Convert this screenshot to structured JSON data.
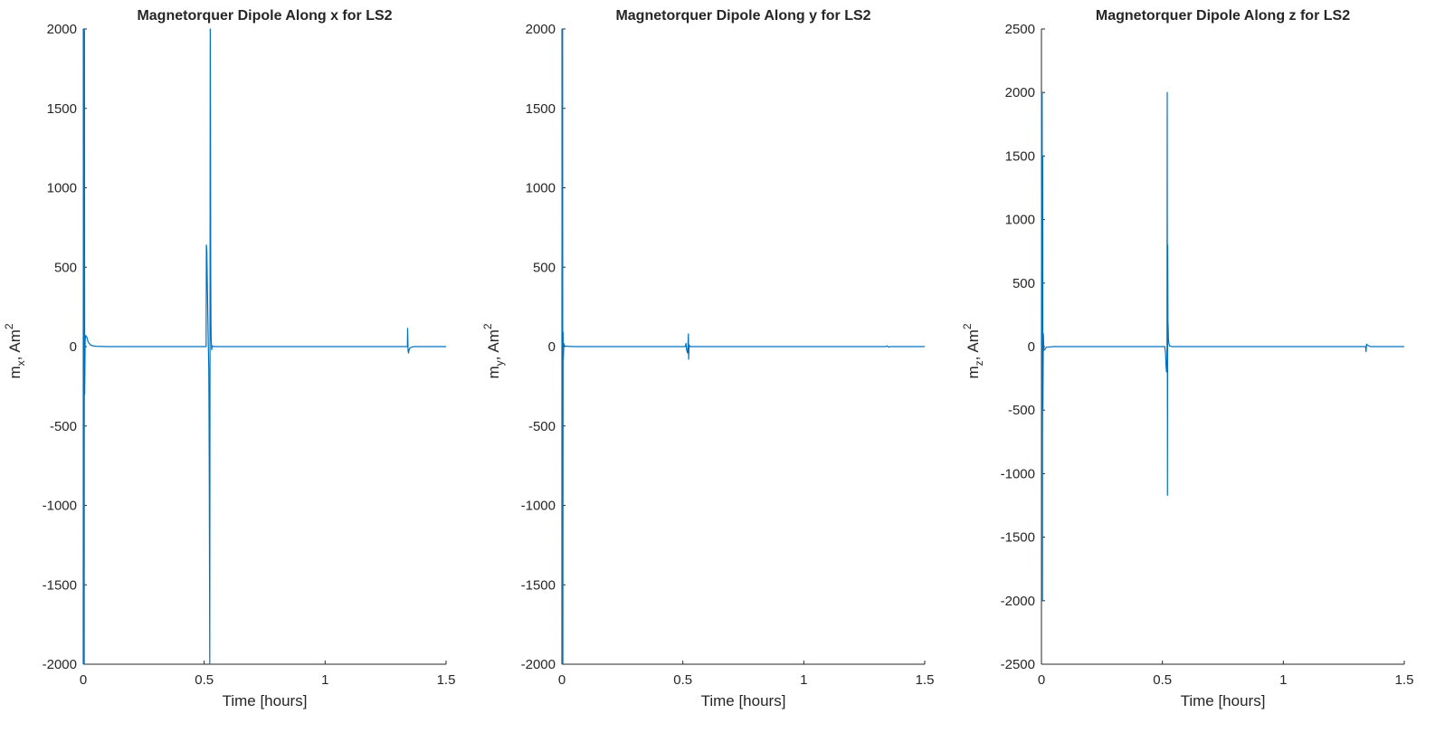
{
  "chart_data": [
    {
      "type": "line",
      "title": "Magnetorquer Dipole Along x for LS2",
      "xlabel": "Time [hours]",
      "ylabel": {
        "base": "m",
        "sub": "x",
        "sep": ",",
        "unit": "Am",
        "sup": "2"
      },
      "xlim": [
        0,
        1.5
      ],
      "ylim": [
        -2000,
        2000
      ],
      "xticks": [
        0,
        0.5,
        1,
        1.5
      ],
      "xtick_labels": [
        "0",
        "0.5",
        "1",
        "1.5"
      ],
      "yticks": [
        2000,
        1500,
        1000,
        500,
        0,
        -500,
        -1000,
        -1500,
        -2000
      ],
      "ytick_labels": [
        "2000",
        "1500",
        "1000",
        "500",
        "0",
        "-500",
        "-1000",
        "-1500",
        "-2000"
      ],
      "grid": false,
      "series": [
        {
          "x": [
            0,
            0.001,
            0.002,
            0.003,
            0.004,
            0.005,
            0.006,
            0.008,
            0.01,
            0.015,
            0.02,
            0.03,
            0.04,
            0.05,
            0.1,
            0.2,
            0.3,
            0.4,
            0.5,
            0.508,
            0.509,
            0.511,
            0.513,
            0.515,
            0.517,
            0.519,
            0.52,
            0.521,
            0.523,
            0.525,
            0.526,
            0.527,
            0.528,
            0.529,
            0.531,
            0.533,
            0.536,
            0.54,
            0.55,
            0.6,
            0.7,
            0.8,
            0.9,
            1.0,
            1.1,
            1.2,
            1.3,
            1.34,
            1.341,
            1.343,
            1.345,
            1.347,
            1.35,
            1.355,
            1.36,
            1.37,
            1.4,
            1.5
          ],
          "y": [
            0,
            2000,
            -2000,
            2000,
            -2000,
            2000,
            -300,
            40,
            70,
            60,
            30,
            10,
            5,
            2,
            0,
            0,
            0,
            0,
            0,
            0,
            640,
            600,
            400,
            200,
            20,
            -150,
            -400,
            -800,
            -2000,
            2000,
            1500,
            500,
            150,
            40,
            -20,
            5,
            2,
            0,
            0,
            0,
            0,
            0,
            0,
            0,
            0,
            0,
            0,
            0,
            115,
            -30,
            -40,
            -20,
            -10,
            -5,
            -2,
            0,
            0,
            0
          ]
        }
      ]
    },
    {
      "type": "line",
      "title": "Magnetorquer Dipole Along y for LS2",
      "xlabel": "Time [hours]",
      "ylabel": {
        "base": "m",
        "sub": "y",
        "sep": ",",
        "unit": "Am",
        "sup": "2"
      },
      "xlim": [
        0,
        1.5
      ],
      "ylim": [
        -2000,
        2000
      ],
      "xticks": [
        0,
        0.5,
        1,
        1.5
      ],
      "xtick_labels": [
        "0",
        "0.5",
        "1",
        "1.5"
      ],
      "yticks": [
        2000,
        1500,
        1000,
        500,
        0,
        -500,
        -1000,
        -1500,
        -2000
      ],
      "ytick_labels": [
        "2000",
        "1500",
        "1000",
        "500",
        "0",
        "-500",
        "-1000",
        "-1500",
        "-2000"
      ],
      "grid": false,
      "series": [
        {
          "x": [
            0,
            0.001,
            0.002,
            0.003,
            0.004,
            0.005,
            0.006,
            0.008,
            0.01,
            0.02,
            0.05,
            0.1,
            0.2,
            0.3,
            0.4,
            0.5,
            0.51,
            0.513,
            0.515,
            0.518,
            0.52,
            0.523,
            0.524,
            0.526,
            0.528,
            0.53,
            0.54,
            0.6,
            0.8,
            1.0,
            1.2,
            1.3,
            1.34,
            1.345,
            1.35,
            1.36,
            1.5
          ],
          "y": [
            0,
            2000,
            -2000,
            2000,
            -2000,
            90,
            -80,
            20,
            5,
            2,
            0,
            0,
            0,
            0,
            0,
            0,
            0,
            20,
            -15,
            -35,
            -40,
            80,
            -80,
            10,
            5,
            0,
            0,
            0,
            0,
            0,
            0,
            0,
            0,
            5,
            -3,
            0,
            0
          ]
        }
      ]
    },
    {
      "type": "line",
      "title": "Magnetorquer Dipole Along z for LS2",
      "xlabel": "Time [hours]",
      "ylabel": {
        "base": "m",
        "sub": "z",
        "sep": ",",
        "unit": "Am",
        "sup": "2"
      },
      "xlim": [
        0,
        1.5
      ],
      "ylim": [
        -2500,
        2500
      ],
      "xticks": [
        0,
        0.5,
        1,
        1.5
      ],
      "xtick_labels": [
        "0",
        "0.5",
        "1",
        "1.5"
      ],
      "yticks": [
        2500,
        2000,
        1500,
        1000,
        500,
        0,
        -500,
        -1000,
        -1500,
        -2000,
        -2500
      ],
      "ytick_labels": [
        "2500",
        "2000",
        "1500",
        "1000",
        "500",
        "0",
        "-500",
        "-1000",
        "-1500",
        "-2000",
        "-2500"
      ],
      "grid": false,
      "series": [
        {
          "x": [
            0,
            0.001,
            0.002,
            0.003,
            0.004,
            0.005,
            0.006,
            0.008,
            0.01,
            0.015,
            0.02,
            0.05,
            0.1,
            0.2,
            0.3,
            0.4,
            0.5,
            0.51,
            0.513,
            0.515,
            0.517,
            0.519,
            0.52,
            0.521,
            0.522,
            0.523,
            0.524,
            0.525,
            0.527,
            0.53,
            0.535,
            0.54,
            0.6,
            0.8,
            1.0,
            1.2,
            1.3,
            1.34,
            1.342,
            1.344,
            1.348,
            1.355,
            1.36,
            1.37,
            1.5
          ],
          "y": [
            0,
            2000,
            -2000,
            2000,
            -2000,
            1500,
            -500,
            100,
            -30,
            -20,
            -5,
            0,
            0,
            0,
            0,
            0,
            0,
            0,
            -50,
            -150,
            -200,
            -100,
            2000,
            -1170,
            800,
            200,
            150,
            60,
            20,
            5,
            2,
            0,
            0,
            0,
            0,
            0,
            0,
            0,
            -40,
            20,
            10,
            5,
            0,
            0,
            0
          ]
        }
      ]
    }
  ]
}
